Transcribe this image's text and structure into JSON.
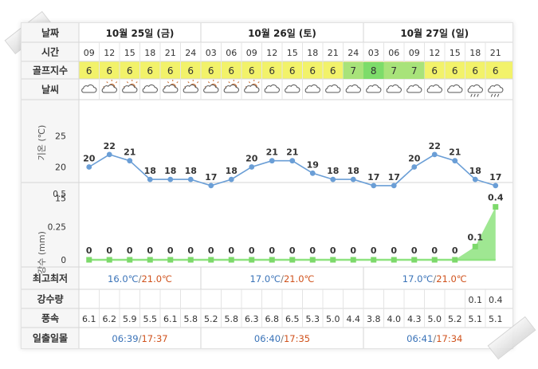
{
  "labels": {
    "date": "날짜",
    "time": "시간",
    "golf_index": "골프지수",
    "weather": "날씨",
    "temp_axis": "기온 (℃)",
    "rain_axis": "강수 (mm)",
    "minmax": "최고최저",
    "rainfall": "강수량",
    "wind": "풍속",
    "sun": "일출일몰"
  },
  "days": [
    {
      "label": "10월 25일 (금)",
      "min": "16.0℃",
      "max": "21.0℃",
      "sunrise": "06:39",
      "sunset": "17:37"
    },
    {
      "label": "10월 26일 (토)",
      "min": "17.0℃",
      "max": "21.0℃",
      "sunrise": "06:40",
      "sunset": "17:35"
    },
    {
      "label": "10월 27일 (일)",
      "min": "17.0℃",
      "max": "21.0℃",
      "sunrise": "06:41",
      "sunset": "17:34"
    }
  ],
  "slots": [
    {
      "time": "09",
      "golf": "6",
      "icon": "cloudy-icon",
      "temp": 20,
      "rain": 0,
      "rain_amount": "",
      "wind": "6.1"
    },
    {
      "time": "12",
      "golf": "6",
      "icon": "sun-cloud-icon",
      "temp": 22,
      "rain": 0,
      "rain_amount": "",
      "wind": "6.2"
    },
    {
      "time": "15",
      "golf": "6",
      "icon": "sun-cloud-icon",
      "temp": 21,
      "rain": 0,
      "rain_amount": "",
      "wind": "5.9"
    },
    {
      "time": "18",
      "golf": "6",
      "icon": "cloudy-icon",
      "temp": 18,
      "rain": 0,
      "rain_amount": "",
      "wind": "5.5"
    },
    {
      "time": "21",
      "golf": "6",
      "icon": "sun-cloud-icon",
      "temp": 18,
      "rain": 0,
      "rain_amount": "",
      "wind": "6.1"
    },
    {
      "time": "24",
      "golf": "6",
      "icon": "sun-cloud-icon",
      "temp": 18,
      "rain": 0,
      "rain_amount": "",
      "wind": "5.8"
    },
    {
      "time": "03",
      "golf": "6",
      "icon": "sun-cloud-icon",
      "temp": 17,
      "rain": 0,
      "rain_amount": "",
      "wind": "5.2"
    },
    {
      "time": "06",
      "golf": "6",
      "icon": "sun-cloud-icon",
      "temp": 18,
      "rain": 0,
      "rain_amount": "",
      "wind": "5.8"
    },
    {
      "time": "09",
      "golf": "6",
      "icon": "sun-cloud-icon",
      "temp": 20,
      "rain": 0,
      "rain_amount": "",
      "wind": "6.3"
    },
    {
      "time": "12",
      "golf": "6",
      "icon": "cloudy-icon",
      "temp": 21,
      "rain": 0,
      "rain_amount": "",
      "wind": "6.8"
    },
    {
      "time": "15",
      "golf": "6",
      "icon": "cloudy-icon",
      "temp": 21,
      "rain": 0,
      "rain_amount": "",
      "wind": "6.5"
    },
    {
      "time": "18",
      "golf": "6",
      "icon": "cloudy-icon",
      "temp": 19,
      "rain": 0,
      "rain_amount": "",
      "wind": "5.3"
    },
    {
      "time": "21",
      "golf": "6",
      "icon": "cloudy-icon",
      "temp": 18,
      "rain": 0,
      "rain_amount": "",
      "wind": "5.0"
    },
    {
      "time": "24",
      "golf": "7",
      "icon": "cloudy-icon",
      "temp": 18,
      "rain": 0,
      "rain_amount": "",
      "wind": "4.4"
    },
    {
      "time": "03",
      "golf": "8",
      "icon": "cloudy-icon",
      "temp": 17,
      "rain": 0,
      "rain_amount": "",
      "wind": "3.8"
    },
    {
      "time": "06",
      "golf": "7",
      "icon": "cloudy-icon",
      "temp": 17,
      "rain": 0,
      "rain_amount": "",
      "wind": "4.0"
    },
    {
      "time": "09",
      "golf": "7",
      "icon": "cloudy-icon",
      "temp": 20,
      "rain": 0,
      "rain_amount": "",
      "wind": "4.3"
    },
    {
      "time": "12",
      "golf": "6",
      "icon": "cloudy-icon",
      "temp": 22,
      "rain": 0,
      "rain_amount": "",
      "wind": "5.0"
    },
    {
      "time": "15",
      "golf": "6",
      "icon": "cloudy-icon",
      "temp": 21,
      "rain": 0,
      "rain_amount": "",
      "wind": "5.2"
    },
    {
      "time": "18",
      "golf": "6",
      "icon": "rain-icon",
      "temp": 18,
      "rain": 0.1,
      "rain_amount": "0.1",
      "wind": "5.1"
    },
    {
      "time": "21",
      "golf": "6",
      "icon": "rain-icon",
      "temp": 17,
      "rain": 0.4,
      "rain_amount": "0.4",
      "wind": "5.1"
    }
  ],
  "chart_data": [
    {
      "type": "line",
      "ylabel": "기온 (℃)",
      "ylim": [
        15,
        25
      ],
      "yticks": [
        15,
        20,
        25
      ],
      "x": [
        "09",
        "12",
        "15",
        "18",
        "21",
        "24",
        "03",
        "06",
        "09",
        "12",
        "15",
        "18",
        "21",
        "24",
        "03",
        "06",
        "09",
        "12",
        "15",
        "18",
        "21"
      ],
      "values": [
        20,
        22,
        21,
        18,
        18,
        18,
        17,
        18,
        20,
        21,
        21,
        19,
        18,
        18,
        17,
        17,
        20,
        22,
        21,
        18,
        17
      ]
    },
    {
      "type": "area",
      "ylabel": "강수 (mm)",
      "ylim": [
        0,
        0.5
      ],
      "yticks": [
        "0",
        "0.25",
        "0.5"
      ],
      "x": [
        "09",
        "12",
        "15",
        "18",
        "21",
        "24",
        "03",
        "06",
        "09",
        "12",
        "15",
        "18",
        "21",
        "24",
        "03",
        "06",
        "09",
        "12",
        "15",
        "18",
        "21"
      ],
      "values": [
        0,
        0,
        0,
        0,
        0,
        0,
        0,
        0,
        0,
        0,
        0,
        0,
        0,
        0,
        0,
        0,
        0,
        0,
        0,
        0.1,
        0.4
      ]
    }
  ],
  "colors": {
    "golf_normal": "#f2f26a",
    "golf_good": "#a8e37a",
    "golf_best": "#7ddc6a",
    "temp_line": "#6a9ed6",
    "rain_fill": "#8ee37f",
    "min_color": "#3a73b8",
    "max_color": "#d0521c"
  }
}
